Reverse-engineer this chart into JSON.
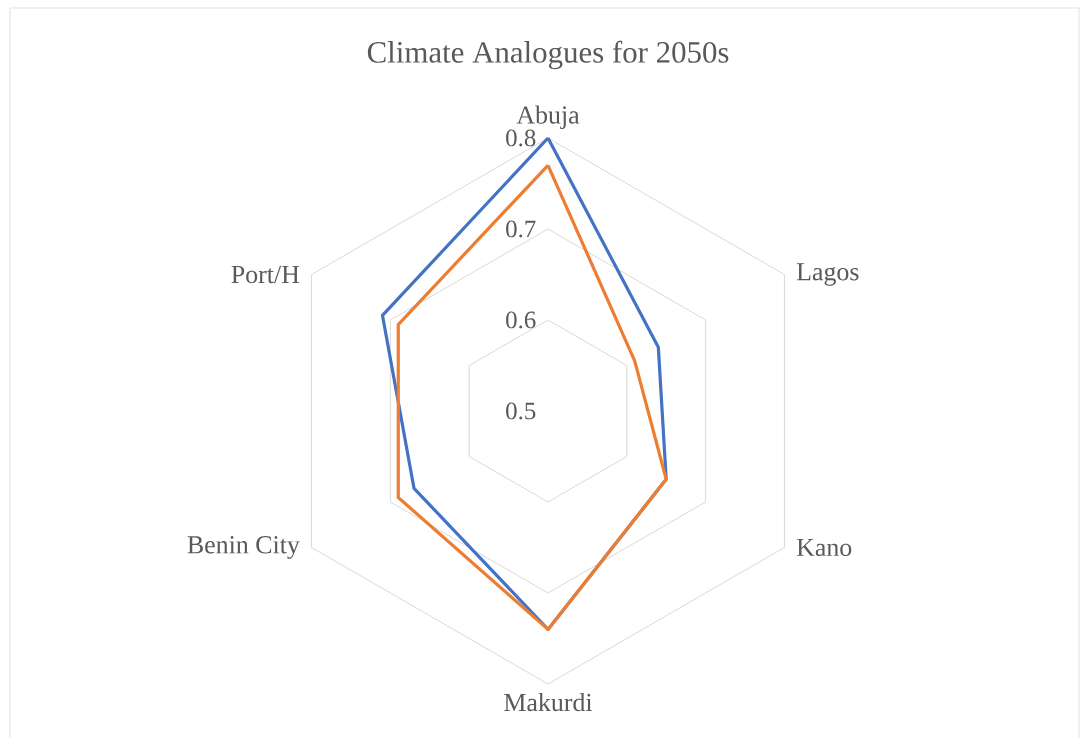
{
  "chart_data": {
    "type": "radar",
    "title": "Climate Analogues for 2050s",
    "categories": [
      "Abuja",
      "Lagos",
      "Kano",
      "Makurdi",
      "Benin City",
      "Port/H"
    ],
    "series": [
      {
        "color": "#4472c4",
        "values": [
          0.8,
          0.64,
          0.65,
          0.74,
          0.67,
          0.71
        ]
      },
      {
        "color": "#ed7d31",
        "values": [
          0.77,
          0.61,
          0.65,
          0.74,
          0.69,
          0.69
        ]
      }
    ],
    "ylim": [
      0.5,
      0.8
    ],
    "yticks": [
      0.5,
      0.6,
      0.7,
      0.8
    ],
    "grid": true
  }
}
